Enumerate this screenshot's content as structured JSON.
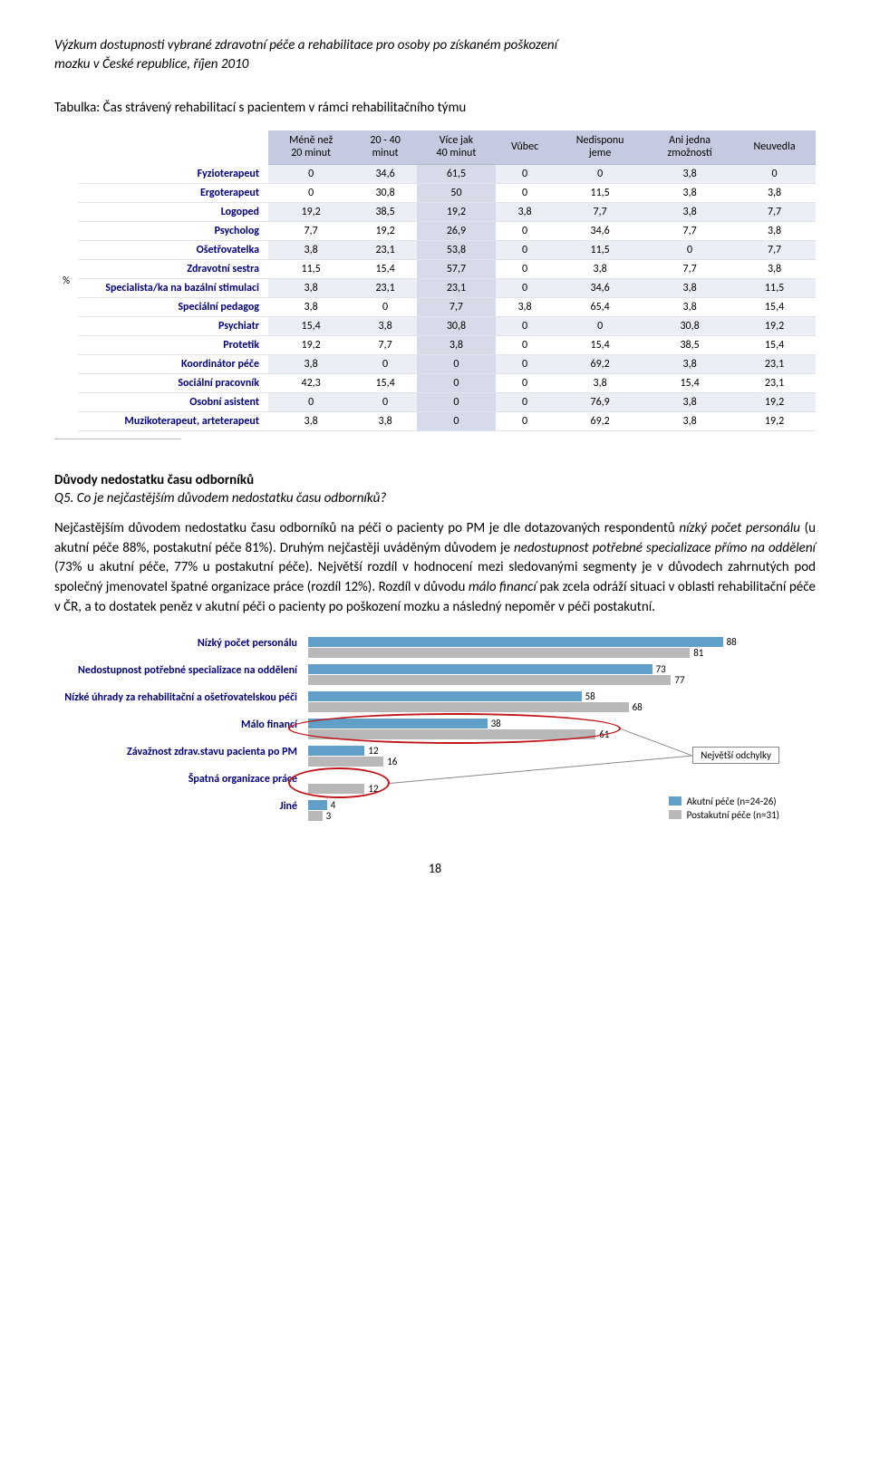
{
  "header": {
    "line1": "Výzkum dostupnosti vybrané zdravotní péče a rehabilitace pro osoby po získaném poškození",
    "line2": "mozku v České republice, říjen 2010"
  },
  "table_caption": "Tabulka: Čas strávený rehabilitací s pacientem v rámci rehabilitačního týmu",
  "table": {
    "y_axis_label": "%",
    "columns": [
      "",
      "Méně než\n20 minut",
      "20 - 40\nminut",
      "Více jak\n40 minut",
      "Vůbec",
      "Nedisponu\njeme",
      "Ani jedna\nzmožností",
      "Neuvedla"
    ],
    "rows": [
      {
        "label": "Fyzioterapeut",
        "v": [
          "0",
          "34,6",
          "61,5",
          "0",
          "0",
          "3,8",
          "0"
        ]
      },
      {
        "label": "Ergoterapeut",
        "v": [
          "0",
          "30,8",
          "50",
          "0",
          "11,5",
          "3,8",
          "3,8"
        ]
      },
      {
        "label": "Logoped",
        "v": [
          "19,2",
          "38,5",
          "19,2",
          "3,8",
          "7,7",
          "3,8",
          "7,7"
        ]
      },
      {
        "label": "Psycholog",
        "v": [
          "7,7",
          "19,2",
          "26,9",
          "0",
          "34,6",
          "7,7",
          "3,8"
        ]
      },
      {
        "label": "Ošetřovatelka",
        "v": [
          "3,8",
          "23,1",
          "53,8",
          "0",
          "11,5",
          "0",
          "7,7"
        ]
      },
      {
        "label": "Zdravotní sestra",
        "v": [
          "11,5",
          "15,4",
          "57,7",
          "0",
          "3,8",
          "7,7",
          "3,8"
        ]
      },
      {
        "label": "Specialista/ka na bazální stimulaci",
        "v": [
          "3,8",
          "23,1",
          "23,1",
          "0",
          "34,6",
          "3,8",
          "11,5"
        ]
      },
      {
        "label": "Speciální pedagog",
        "v": [
          "3,8",
          "0",
          "7,7",
          "3,8",
          "65,4",
          "3,8",
          "15,4"
        ]
      },
      {
        "label": "Psychiatr",
        "v": [
          "15,4",
          "3,8",
          "30,8",
          "0",
          "0",
          "30,8",
          "19,2"
        ]
      },
      {
        "label": "Protetik",
        "v": [
          "19,2",
          "7,7",
          "3,8",
          "0",
          "15,4",
          "38,5",
          "15,4"
        ]
      },
      {
        "label": "Koordinátor péče",
        "v": [
          "3,8",
          "0",
          "0",
          "0",
          "69,2",
          "3,8",
          "23,1"
        ]
      },
      {
        "label": "Sociální pracovník",
        "v": [
          "42,3",
          "15,4",
          "0",
          "0",
          "3,8",
          "15,4",
          "23,1"
        ]
      },
      {
        "label": "Osobní asistent",
        "v": [
          "0",
          "0",
          "0",
          "0",
          "76,9",
          "3,8",
          "19,2"
        ]
      },
      {
        "label": "Muzikoterapeut, arteterapeut",
        "v": [
          "3,8",
          "3,8",
          "0",
          "0",
          "69,2",
          "3,8",
          "19,2"
        ]
      }
    ],
    "highlight_col": 2,
    "header_bg": "#c6cae0",
    "row_even_bg": "#eceef6",
    "highlight_bg": "#d7dae8",
    "label_color": "#000080"
  },
  "section": {
    "heading": "Důvody nedostatku času odborníků",
    "question": "Q5. Co je nejčastějším důvodem nedostatku času odborníků?",
    "paragraph_parts": [
      {
        "t": "Nejčastějším důvodem nedostatku času odborníků na péči o pacienty po PM  je dle dotazovaných respondentů "
      },
      {
        "t": "nízký počet personálu",
        "em": true
      },
      {
        "t": " (u akutní péče 88%, postakutní péče 81%). Druhým nejčastěji uváděným důvodem je "
      },
      {
        "t": "nedostupnost potřebné specializace přímo na oddělení",
        "em": true
      },
      {
        "t": " (73% u akutní péče, 77% u postakutní péče).  Největší rozdíl v hodnocení mezi sledovanými segmenty je v důvodech zahrnutých pod společný jmenovatel špatné organizace práce (rozdíl 12%). Rozdíl v důvodu "
      },
      {
        "t": "málo financí",
        "em": true
      },
      {
        "t": " pak zcela odráží situaci v oblasti rehabilitační péče v ČR, a to dostatek peněz v akutní péči o pacienty po poškození mozku a následný nepoměr v péči postakutní."
      }
    ]
  },
  "chart": {
    "y_label": "%",
    "max": 100,
    "colors": {
      "a": "#60a0c8",
      "b": "#b8b8b8"
    },
    "categories": [
      {
        "label": "Nízký počet personálu",
        "a": 88,
        "b": 81
      },
      {
        "label": "Nedostupnost potřebné specializace na oddělení",
        "a": 73,
        "b": 77
      },
      {
        "label": "Nízké úhrady za rehabilitační a ošetřovatelskou péči",
        "a": 58,
        "b": 68
      },
      {
        "label": "Málo financí",
        "a": 38,
        "b": 61,
        "ellipse": true
      },
      {
        "label": "Závažnost zdrav.stavu pacienta po PM",
        "a": 12,
        "b": 16
      },
      {
        "label": "Špatná organizace práce",
        "a": null,
        "b": 12,
        "ellipse": true
      },
      {
        "label": "Jiné",
        "a": 4,
        "b": 3
      }
    ],
    "legend": {
      "a": "Akutní péče (n=24-26)",
      "b": "Postakutní péče (n=31)"
    },
    "annotation": "Největší odchylky"
  },
  "page_number": "18"
}
